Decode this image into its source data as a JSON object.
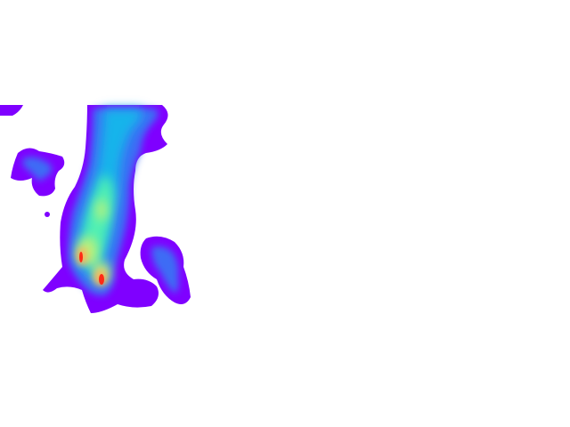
{
  "image": {
    "kind": "density-heatmap",
    "background_color": "#ffffff",
    "colormap": "rainbow",
    "colormap_stops": [
      "#7f00ff",
      "#3c6cf5",
      "#14b4eb",
      "#50f0b4",
      "#bef07a",
      "#ffb45a",
      "#ff2a15"
    ]
  }
}
